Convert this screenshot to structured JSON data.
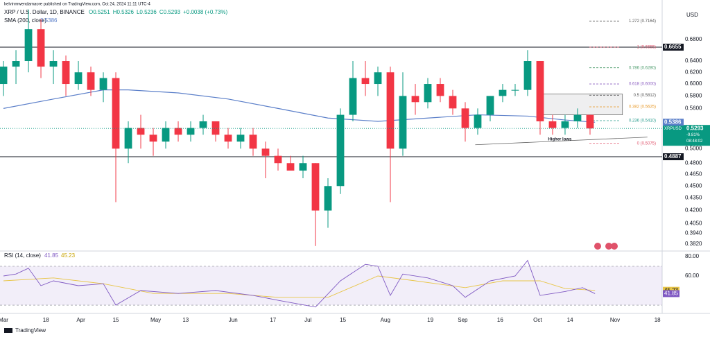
{
  "header": {
    "publisher": "kelvinmwendamaore published on TradingView.com, Oct 24, 2024 11:11 UTC-4",
    "symbol": "XRP / U.S. Dollar, 1D, BINANCE",
    "quote": [
      "O0.5251",
      "H0.5326",
      "L0.5236",
      "C0.5293",
      "+0.0038 (+0.73%)"
    ],
    "currency": "USD"
  },
  "chart_data": {
    "type": "candlestick",
    "log_scale": true,
    "up_color": "#089981",
    "down_color": "#f23645",
    "x": [
      0,
      5,
      10,
      15,
      20,
      25,
      30,
      35,
      40,
      45,
      50,
      55,
      60,
      65,
      70,
      75,
      80,
      85,
      90,
      95,
      100,
      105,
      110,
      115,
      120,
      125,
      130,
      135,
      140,
      145,
      150,
      155,
      160,
      165,
      170,
      175,
      180,
      185,
      190,
      195,
      200,
      205,
      210,
      215,
      220,
      225,
      230,
      235
    ],
    "open": [
      0.6,
      0.63,
      0.64,
      0.7,
      0.63,
      0.64,
      0.6,
      0.62,
      0.59,
      0.61,
      0.5,
      0.53,
      0.52,
      0.51,
      0.53,
      0.52,
      0.53,
      0.54,
      0.52,
      0.51,
      0.52,
      0.5,
      0.49,
      0.48,
      0.47,
      0.48,
      0.42,
      0.45,
      0.55,
      0.61,
      0.6,
      0.62,
      0.5,
      0.58,
      0.57,
      0.6,
      0.58,
      0.56,
      0.53,
      0.55,
      0.58,
      0.59,
      0.59,
      0.64,
      0.54,
      0.53,
      0.54,
      0.55
    ],
    "high": [
      0.64,
      0.66,
      0.74,
      0.72,
      0.66,
      0.65,
      0.64,
      0.63,
      0.62,
      0.62,
      0.54,
      0.55,
      0.53,
      0.54,
      0.54,
      0.54,
      0.55,
      0.54,
      0.53,
      0.53,
      0.53,
      0.51,
      0.5,
      0.49,
      0.49,
      0.48,
      0.46,
      0.56,
      0.64,
      0.64,
      0.63,
      0.63,
      0.62,
      0.6,
      0.61,
      0.61,
      0.59,
      0.57,
      0.56,
      0.58,
      0.6,
      0.6,
      0.66,
      0.64,
      0.55,
      0.55,
      0.56,
      0.55
    ],
    "low": [
      0.58,
      0.6,
      0.62,
      0.61,
      0.6,
      0.58,
      0.59,
      0.58,
      0.57,
      0.43,
      0.48,
      0.5,
      0.49,
      0.5,
      0.51,
      0.51,
      0.52,
      0.51,
      0.5,
      0.5,
      0.49,
      0.46,
      0.47,
      0.47,
      0.46,
      0.38,
      0.4,
      0.44,
      0.54,
      0.58,
      0.58,
      0.43,
      0.49,
      0.55,
      0.56,
      0.57,
      0.55,
      0.51,
      0.52,
      0.54,
      0.57,
      0.58,
      0.58,
      0.52,
      0.52,
      0.52,
      0.53,
      0.52
    ],
    "close": [
      0.63,
      0.64,
      0.7,
      0.63,
      0.64,
      0.6,
      0.62,
      0.59,
      0.61,
      0.5,
      0.53,
      0.52,
      0.51,
      0.53,
      0.52,
      0.53,
      0.54,
      0.52,
      0.51,
      0.52,
      0.5,
      0.49,
      0.48,
      0.47,
      0.48,
      0.42,
      0.45,
      0.55,
      0.61,
      0.6,
      0.62,
      0.5,
      0.58,
      0.57,
      0.6,
      0.58,
      0.56,
      0.53,
      0.55,
      0.58,
      0.59,
      0.59,
      0.64,
      0.54,
      0.53,
      0.54,
      0.55,
      0.5293
    ],
    "sma": {
      "name": "SMA (200, close)",
      "color": "#5b7fc9",
      "x": [
        0,
        20,
        40,
        50,
        70,
        90,
        110,
        130,
        150,
        170,
        190,
        210,
        225,
        237
      ],
      "values": [
        0.56,
        0.575,
        0.59,
        0.59,
        0.585,
        0.575,
        0.56,
        0.545,
        0.54,
        0.545,
        0.55,
        0.548,
        0.542,
        0.5386
      ]
    },
    "xlim": [
      -1.4,
      263.9
    ],
    "xticks": [
      {
        "value": 0,
        "label": "Mar"
      },
      {
        "value": 17,
        "label": "18"
      },
      {
        "value": 31,
        "label": "Apr"
      },
      {
        "value": 45,
        "label": "15"
      },
      {
        "value": 61,
        "label": "May"
      },
      {
        "value": 73,
        "label": "13"
      },
      {
        "value": 92,
        "label": "Jun"
      },
      {
        "value": 108,
        "label": "17"
      },
      {
        "value": 122,
        "label": "Jul"
      },
      {
        "value": 136,
        "label": "15"
      },
      {
        "value": 153,
        "label": "Aug"
      },
      {
        "value": 171,
        "label": "19"
      },
      {
        "value": 184,
        "label": "Sep"
      },
      {
        "value": 199,
        "label": "16"
      },
      {
        "value": 214,
        "label": "Oct"
      },
      {
        "value": 227,
        "label": "14"
      },
      {
        "value": 245,
        "label": "Nov"
      },
      {
        "value": 262,
        "label": "18"
      }
    ],
    "ylim": [
      0.3747,
      0.7527
    ],
    "yticks": [
      {
        "value": 0.68,
        "label": "0.6800"
      },
      {
        "value": 0.64,
        "label": "0.6400"
      },
      {
        "value": 0.62,
        "label": "0.6200"
      },
      {
        "value": 0.6,
        "label": "0.6000"
      },
      {
        "value": 0.58,
        "label": "0.5800"
      },
      {
        "value": 0.56,
        "label": "0.5600"
      },
      {
        "value": 0.5,
        "label": "0.5000"
      },
      {
        "value": 0.48,
        "label": "0.4800"
      },
      {
        "value": 0.465,
        "label": "0.4650"
      },
      {
        "value": 0.45,
        "label": "0.4500"
      },
      {
        "value": 0.435,
        "label": "0.4350"
      },
      {
        "value": 0.42,
        "label": "0.4200"
      },
      {
        "value": 0.405,
        "label": "0.4050"
      },
      {
        "value": 0.394,
        "label": "0.3940"
      },
      {
        "value": 0.382,
        "label": "0.3820"
      }
    ],
    "levels": [
      0.6655,
      0.4887
    ],
    "price_tag": {
      "symbol": "XRPUSD",
      "change": "-9.81%",
      "countdown": "08:48:02"
    },
    "fib": [
      {
        "value": 0.7164,
        "label": "1.272 (0.7164)",
        "color": "#555555"
      },
      {
        "value": 0.6655,
        "label": "1 (0.6655)",
        "color": "#e0526a"
      },
      {
        "value": 0.628,
        "label": "0.786 (0.6280)",
        "color": "#4a9a6a"
      },
      {
        "value": 0.6,
        "label": "0.618 (0.6000)",
        "color": "#8a5cc0"
      },
      {
        "value": 0.5812,
        "label": "0.5 (0.5812)",
        "color": "#555555"
      },
      {
        "value": 0.5625,
        "label": "0.382 (0.5625)",
        "color": "#e89a2a"
      },
      {
        "value": 0.541,
        "label": "0.236 (0.5410)",
        "color": "#2a9d8f"
      },
      {
        "value": 0.5075,
        "label": "0 (0.5075)",
        "color": "#e0526a"
      }
    ],
    "zone": {
      "x": [
        215,
        248
      ],
      "values": [
        0.55,
        0.583
      ]
    },
    "trendline": {
      "x": [
        189,
        258
      ],
      "values": [
        0.5055,
        0.5165
      ]
    },
    "annotation": "Higher lows",
    "rsi": {
      "name": "RSI (14, close)",
      "color": "#7e57c2",
      "x": [
        0,
        5,
        10,
        15,
        20,
        30,
        40,
        45,
        55,
        70,
        85,
        100,
        110,
        125,
        135,
        145,
        150,
        155,
        160,
        170,
        180,
        185,
        195,
        205,
        210,
        215,
        225,
        232,
        237
      ],
      "values": [
        60,
        62,
        68,
        50,
        55,
        50,
        52,
        30,
        45,
        42,
        45,
        40,
        35,
        28,
        55,
        72,
        70,
        40,
        62,
        58,
        50,
        38,
        55,
        60,
        76,
        40,
        44,
        48,
        41.85
      ],
      "ma": {
        "color": "#e8c547",
        "x": [
          0,
          20,
          40,
          60,
          90,
          110,
          130,
          150,
          165,
          185,
          200,
          215,
          225,
          237
        ],
        "values": [
          55,
          58,
          52,
          42,
          42,
          38,
          38,
          60,
          55,
          48,
          55,
          55,
          47,
          45.23
        ]
      },
      "ylim": [
        24.3,
        85.7
      ],
      "band": [
        30,
        70
      ],
      "yticks": [
        {
          "value": 80,
          "label": "80.00"
        },
        {
          "value": 60,
          "label": "60.00"
        }
      ]
    },
    "brand": "TradingView"
  }
}
